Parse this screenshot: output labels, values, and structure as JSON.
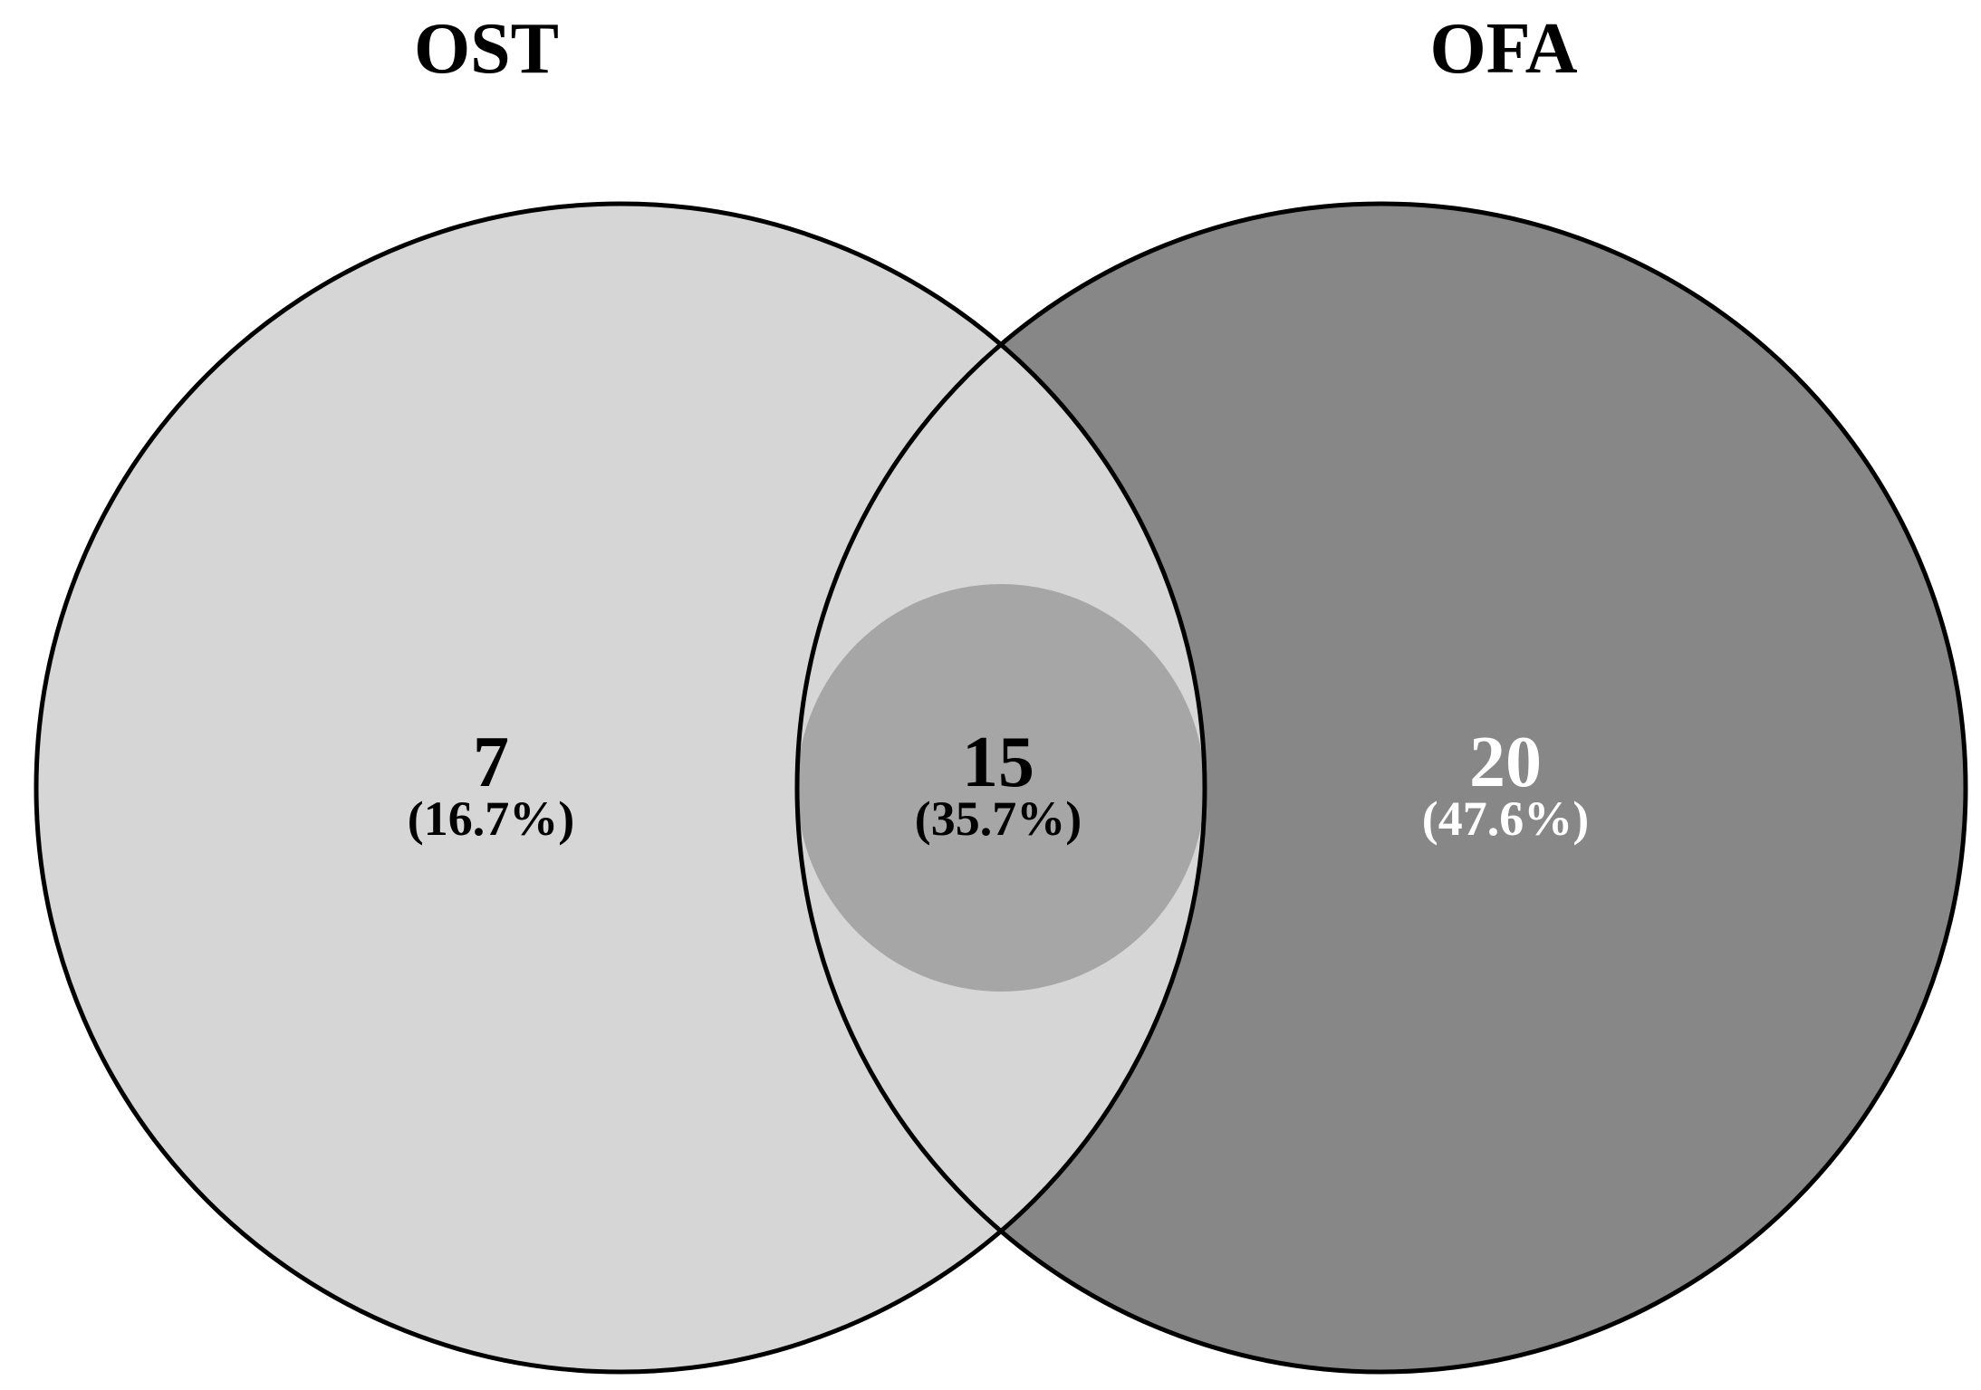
{
  "sets": [
    {
      "name": "OST",
      "fill": "#d6d6d6"
    },
    {
      "name": "OFA",
      "fill": "#878787"
    }
  ],
  "overlap_fill": "#a6a6a6",
  "regions": [
    {
      "id": "ost_only",
      "count": "7",
      "percent": "(16.7%)",
      "text_color": "#000000"
    },
    {
      "id": "intersection",
      "count": "15",
      "percent": "(35.7%)",
      "text_color": "#000000"
    },
    {
      "id": "ofa_only",
      "count": "20",
      "percent": "(47.6%)",
      "text_color": "#ffffff"
    }
  ]
}
